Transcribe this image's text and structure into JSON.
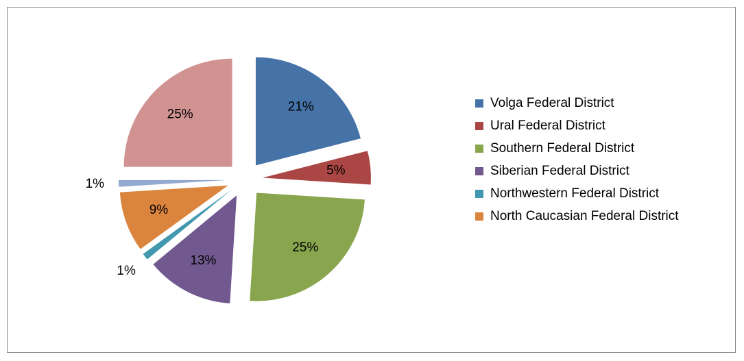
{
  "chart_data": {
    "type": "pie",
    "categories": [
      "Volga Federal District",
      "Ural Federal District",
      "Southern Federal District",
      "Siberian Federal District",
      "Northwestern Federal District",
      "North Caucasian Federal District",
      null,
      null
    ],
    "values": [
      21,
      5,
      25,
      13,
      1,
      9,
      1,
      25
    ],
    "value_labels": [
      "21%",
      "5%",
      "25%",
      "13%",
      "1%",
      "9%",
      "1%",
      "25%"
    ],
    "colors": [
      "#4572a7",
      "#aa4643",
      "#89a54e",
      "#71588f",
      "#4198af",
      "#db843d",
      "#93a9cf",
      "#d19392"
    ],
    "legend": "right"
  }
}
